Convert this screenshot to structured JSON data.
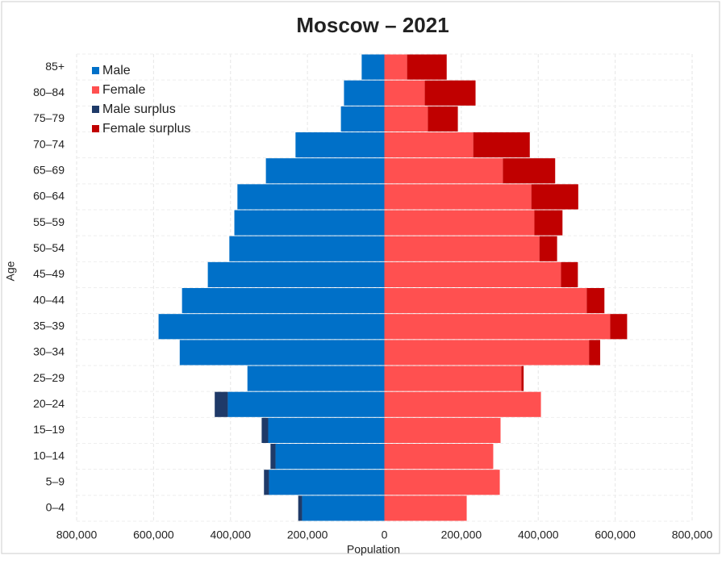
{
  "chart_data": {
    "type": "pyramid",
    "title": "Moscow – 2021",
    "x_label": "Population",
    "y_label": "Age",
    "categories": [
      "0–4",
      "5–9",
      "10–14",
      "15–19",
      "20–24",
      "25–29",
      "30–34",
      "35–39",
      "40–44",
      "45–49",
      "50–54",
      "55–59",
      "60–64",
      "65–69",
      "70–74",
      "75–79",
      "80–84",
      "85+"
    ],
    "series": [
      {
        "name": "Male",
        "color": "#0070c8",
        "values": [
          -214000,
          -300000,
          -283000,
          -302000,
          -407000,
          -356000,
          -532000,
          -587000,
          -526000,
          -459000,
          -403000,
          -390000,
          -382000,
          -308000,
          -231000,
          -113000,
          -105000,
          -59000
        ]
      },
      {
        "name": "Female",
        "color": "#ff5050",
        "values": [
          214000,
          300000,
          283000,
          302000,
          407000,
          356000,
          532000,
          587000,
          526000,
          459000,
          403000,
          390000,
          382000,
          308000,
          231000,
          113000,
          105000,
          59000
        ]
      },
      {
        "name": "Male surplus",
        "color": "#1f3a68",
        "values": [
          -10000,
          -13000,
          -13000,
          -17000,
          -34000,
          0,
          0,
          0,
          0,
          0,
          0,
          0,
          0,
          0,
          0,
          0,
          0,
          0
        ]
      },
      {
        "name": "Female surplus",
        "color": "#c00000",
        "values": [
          0,
          0,
          0,
          0,
          0,
          6000,
          29000,
          44000,
          46000,
          44000,
          46000,
          73000,
          122000,
          136000,
          147000,
          78000,
          132000,
          103000
        ]
      }
    ],
    "xlim": [
      -800000,
      800000
    ],
    "xticks": [
      {
        "value": -800000,
        "label": "800,000"
      },
      {
        "value": -600000,
        "label": "600,000"
      },
      {
        "value": -400000,
        "label": "400,000"
      },
      {
        "value": -200000,
        "label": "200,000"
      },
      0,
      {
        "value": 200000,
        "label": "200,000"
      },
      {
        "value": 400000,
        "label": "400,000"
      },
      {
        "value": 600000,
        "label": "600,000"
      },
      {
        "value": 800000,
        "label": "800,000"
      }
    ],
    "grid": true,
    "legend": "top-left"
  }
}
